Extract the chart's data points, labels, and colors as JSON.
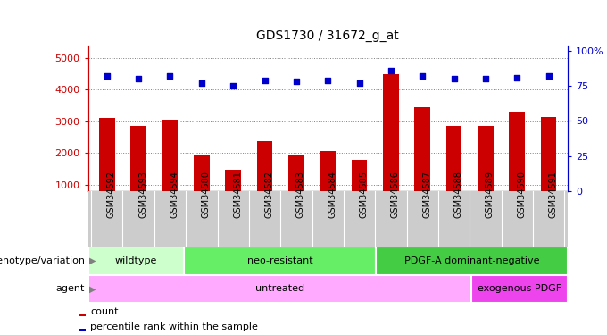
{
  "title": "GDS1730 / 31672_g_at",
  "samples": [
    "GSM34592",
    "GSM34593",
    "GSM34594",
    "GSM34580",
    "GSM34581",
    "GSM34582",
    "GSM34583",
    "GSM34584",
    "GSM34585",
    "GSM34586",
    "GSM34587",
    "GSM34588",
    "GSM34589",
    "GSM34590",
    "GSM34591"
  ],
  "counts": [
    3100,
    2850,
    3050,
    1950,
    1480,
    2380,
    1930,
    2060,
    1780,
    4500,
    3430,
    2840,
    2840,
    3310,
    3120
  ],
  "percentiles": [
    82,
    80,
    82,
    77,
    75,
    79,
    78,
    79,
    77,
    86,
    82,
    80,
    80,
    81,
    82
  ],
  "genotype_groups": [
    {
      "label": "wildtype",
      "start": 0,
      "end": 3,
      "color": "#ccffcc"
    },
    {
      "label": "neo-resistant",
      "start": 3,
      "end": 9,
      "color": "#66ee66"
    },
    {
      "label": "PDGF-A dominant-negative",
      "start": 9,
      "end": 15,
      "color": "#44cc44"
    }
  ],
  "agent_groups": [
    {
      "label": "untreated",
      "start": 0,
      "end": 12,
      "color": "#ffaaff"
    },
    {
      "label": "exogenous PDGF",
      "start": 12,
      "end": 15,
      "color": "#ee44ee"
    }
  ],
  "bar_color": "#cc0000",
  "dot_color": "#0000cc",
  "yticks_left": [
    1000,
    2000,
    3000,
    4000,
    5000
  ],
  "ytick_right_labels": [
    "0",
    "25",
    "50",
    "75",
    "100%"
  ],
  "yticks_right_vals": [
    0,
    25,
    50,
    75,
    100
  ],
  "ylim_left": [
    800,
    5400
  ],
  "ylim_right": [
    0,
    104
  ],
  "background_color": "#ffffff",
  "tick_bg_color": "#cccccc",
  "left_label_color": "#000000"
}
